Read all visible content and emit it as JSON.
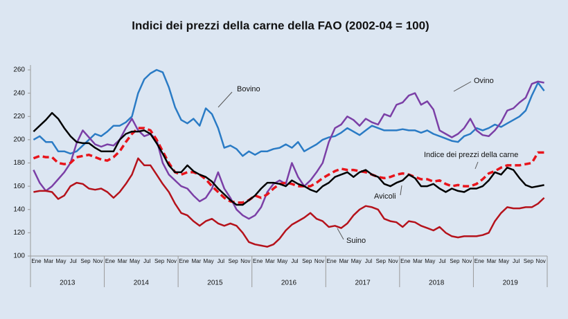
{
  "chart_data": {
    "type": "line",
    "title": "Indici dei prezzi della carne della FAO (2002-04 = 100)",
    "categories": [
      "Ene",
      null,
      "Mar",
      null,
      "May",
      null,
      "Jul",
      null,
      "Sep",
      null,
      "Nov",
      null,
      "Ene",
      null,
      "Mar",
      null,
      "May",
      null,
      "Jul",
      null,
      "Sep",
      null,
      "Nov",
      null,
      "Ene",
      null,
      "Mar",
      null,
      "May",
      null,
      "Jul",
      null,
      "Sep",
      null,
      "Nov",
      null,
      "Ene",
      null,
      "Mar",
      null,
      "May",
      null,
      "Jul",
      null,
      "Sep",
      null,
      "Nov",
      null,
      "Ene",
      null,
      "Mar",
      null,
      "May",
      null,
      "Jul",
      null,
      "Sep",
      null,
      "Nov",
      null,
      "Ene",
      null,
      "Mar",
      null,
      "May",
      null,
      "Jul",
      null,
      "Sep",
      null,
      "Nov",
      null,
      "Ene",
      null,
      "Mar",
      null,
      "May",
      null,
      "Jul",
      null,
      "Sep",
      null,
      "Nov",
      null
    ],
    "years": [
      "2013",
      "2014",
      "2015",
      "2016",
      "2017",
      "2018",
      "2019"
    ],
    "ylim": [
      100,
      260
    ],
    "yticks": [
      100,
      120,
      140,
      160,
      180,
      200,
      220,
      240,
      260
    ],
    "series": [
      {
        "name": "Bovino",
        "color": "#2a7bc5",
        "dashed": false,
        "values": [
          200,
          203,
          198,
          198,
          190,
          190,
          188,
          190,
          195,
          200,
          205,
          203,
          207,
          212,
          212,
          215,
          220,
          240,
          252,
          257,
          260,
          258,
          245,
          228,
          217,
          214,
          218,
          212,
          227,
          222,
          210,
          193,
          195,
          192,
          186,
          190,
          187,
          190,
          190,
          192,
          193,
          196,
          193,
          198,
          190,
          193,
          196,
          200,
          202,
          203,
          206,
          210,
          207,
          204,
          208,
          212,
          210,
          208,
          208,
          208,
          209,
          208,
          208,
          206,
          208,
          205,
          203,
          201,
          199,
          198,
          203,
          205,
          210,
          208,
          210,
          213,
          211,
          214,
          217,
          220,
          225,
          238,
          249,
          242
        ]
      },
      {
        "name": "Ovino",
        "color": "#7b3fa6",
        "dashed": false,
        "values": [
          174,
          163,
          156,
          160,
          166,
          172,
          180,
          197,
          208,
          202,
          196,
          194,
          196,
          195,
          200,
          210,
          218,
          208,
          203,
          205,
          200,
          180,
          170,
          165,
          160,
          158,
          152,
          147,
          150,
          158,
          172,
          158,
          150,
          140,
          135,
          132,
          135,
          142,
          155,
          162,
          165,
          162,
          180,
          168,
          160,
          165,
          172,
          180,
          198,
          210,
          213,
          220,
          217,
          212,
          218,
          215,
          213,
          222,
          220,
          230,
          232,
          238,
          240,
          230,
          233,
          226,
          208,
          205,
          202,
          205,
          210,
          218,
          208,
          204,
          203,
          208,
          215,
          225,
          227,
          232,
          236,
          248,
          250,
          249
        ]
      },
      {
        "name": "Indice dei prezzi della carne",
        "color": "#e8141b",
        "dashed": true,
        "values": [
          184,
          186,
          185,
          185,
          180,
          179,
          180,
          185,
          186,
          187,
          185,
          183,
          182,
          185,
          190,
          198,
          205,
          210,
          210,
          208,
          200,
          190,
          180,
          172,
          170,
          172,
          172,
          170,
          166,
          160,
          155,
          150,
          147,
          146,
          146,
          148,
          152,
          150,
          153,
          158,
          162,
          163,
          162,
          160,
          160,
          160,
          163,
          167,
          170,
          173,
          175,
          174,
          174,
          173,
          172,
          170,
          168,
          167,
          168,
          170,
          171,
          170,
          168,
          166,
          166,
          164,
          165,
          162,
          160,
          161,
          160,
          160,
          162,
          166,
          171,
          173,
          176,
          178,
          178,
          178,
          179,
          180,
          189,
          189
        ]
      },
      {
        "name": "Avicoli",
        "color": "#000000",
        "dashed": false,
        "values": [
          207,
          212,
          217,
          223,
          218,
          210,
          203,
          198,
          197,
          197,
          193,
          190,
          190,
          190,
          200,
          205,
          207,
          207,
          208,
          205,
          197,
          188,
          178,
          172,
          172,
          178,
          173,
          170,
          168,
          164,
          158,
          153,
          148,
          144,
          144,
          148,
          152,
          158,
          163,
          163,
          162,
          160,
          165,
          162,
          160,
          157,
          155,
          160,
          163,
          168,
          170,
          172,
          168,
          172,
          174,
          170,
          168,
          162,
          160,
          163,
          165,
          170,
          167,
          160,
          160,
          162,
          158,
          155,
          158,
          156,
          155,
          158,
          158,
          160,
          165,
          172,
          170,
          176,
          174,
          167,
          161,
          159,
          160,
          161
        ]
      },
      {
        "name": "Suino",
        "color": "#b5121b",
        "dashed": false,
        "values": [
          155,
          156,
          156,
          155,
          149,
          152,
          160,
          163,
          162,
          158,
          157,
          158,
          155,
          150,
          155,
          162,
          170,
          184,
          178,
          178,
          170,
          162,
          155,
          145,
          137,
          135,
          130,
          126,
          130,
          132,
          128,
          126,
          128,
          126,
          120,
          112,
          110,
          109,
          108,
          110,
          115,
          122,
          127,
          130,
          133,
          137,
          132,
          130,
          125,
          126,
          124,
          128,
          135,
          140,
          143,
          142,
          140,
          132,
          130,
          129,
          125,
          130,
          129,
          126,
          124,
          122,
          125,
          120,
          117,
          116,
          117,
          117,
          117,
          118,
          120,
          130,
          137,
          142,
          141,
          141,
          142,
          142,
          145,
          150
        ]
      }
    ]
  }
}
